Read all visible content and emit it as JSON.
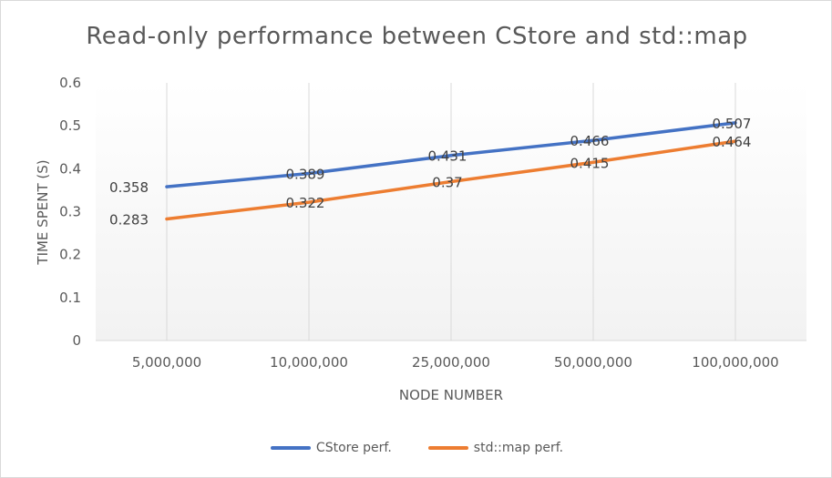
{
  "chart_data": {
    "type": "line",
    "title": "Read-only performance between CStore and std::map",
    "xlabel": "NODE NUMBER",
    "ylabel": "TIME SPENT (S)",
    "categories": [
      "5,000,000",
      "10,000,000",
      "25,000,000",
      "50,000,000",
      "100,000,000"
    ],
    "ylim": [
      0,
      0.6
    ],
    "yticks": [
      "0",
      "0.1",
      "0.2",
      "0.3",
      "0.4",
      "0.5",
      "0.6"
    ],
    "grid": "vertical",
    "legend": "bottom",
    "series": [
      {
        "name": "CStore perf.",
        "color": "#4472c4",
        "values": [
          0.358,
          0.389,
          0.431,
          0.466,
          0.507
        ],
        "labels": [
          "0.358",
          "0.389",
          "0.431",
          "0.466",
          "0.507"
        ]
      },
      {
        "name": "std::map perf.",
        "color": "#ed7d31",
        "values": [
          0.283,
          0.322,
          0.37,
          0.415,
          0.464
        ],
        "labels": [
          "0.283",
          "0.322",
          "0.37",
          "0.415",
          "0.464"
        ]
      }
    ]
  }
}
